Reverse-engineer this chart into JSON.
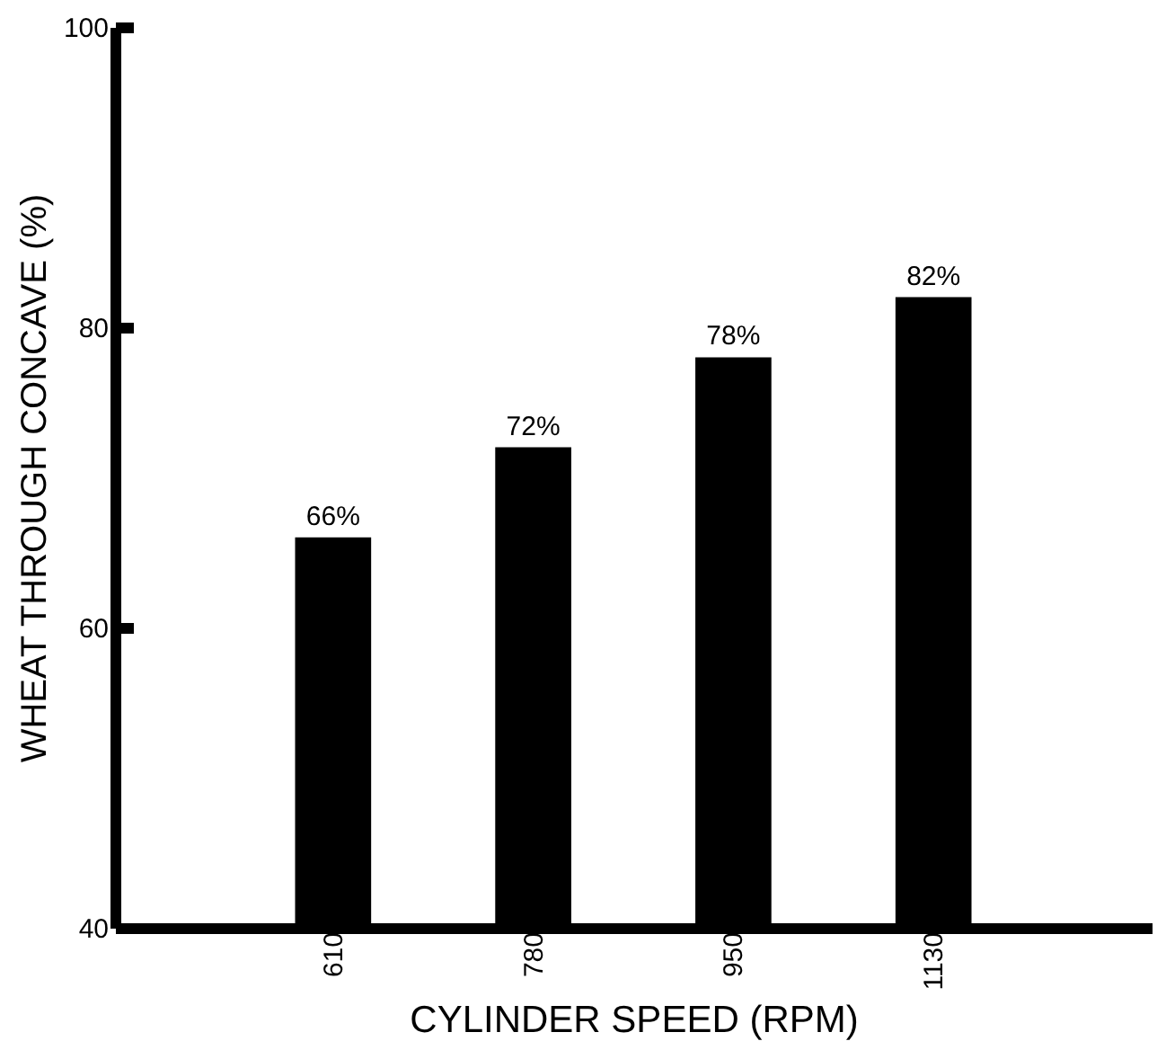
{
  "chart_data": {
    "type": "bar",
    "xlabel": "CYLINDER SPEED (RPM)",
    "ylabel": "WHEAT THROUGH CONCAVE (%)",
    "categories": [
      "610",
      "780",
      "950",
      "1130"
    ],
    "values": [
      66,
      72,
      78,
      82
    ],
    "color": "#000000",
    "value_labels": [
      "66%",
      "72%",
      "78%",
      "82%"
    ],
    "ylim": [
      40,
      100
    ],
    "yticks": [
      40,
      60,
      80,
      100
    ],
    "grid": false
  }
}
